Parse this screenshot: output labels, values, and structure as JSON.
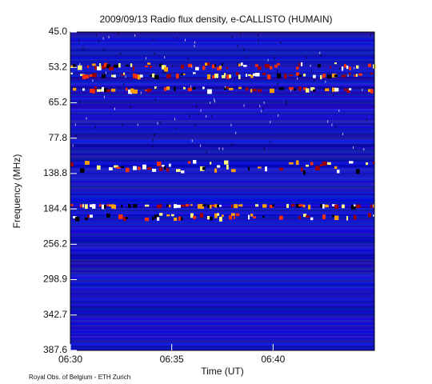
{
  "chart_data": {
    "type": "spectrogram",
    "title": "2009/09/13  Radio flux density, e-CALLISTO (HUMAIN)",
    "x_label": "Time (UT)",
    "y_label": "Frequency (MHz)",
    "xlim": [
      390,
      405
    ],
    "xticks": [
      {
        "value": 390,
        "label": "06:30"
      },
      {
        "value": 395,
        "label": "06:35"
      },
      {
        "value": 400,
        "label": "06:40"
      }
    ],
    "y_categories": [
      "45.0",
      "53.2",
      "65.2",
      "77.8",
      "138.8",
      "184.4",
      "256.2",
      "298.9",
      "342.7",
      "387.6"
    ],
    "credit": "Royal Obs. of Belgium - ETH Zurich"
  }
}
